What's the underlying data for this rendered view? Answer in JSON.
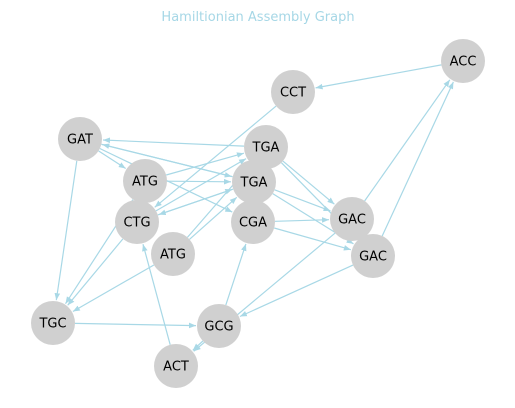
{
  "title": "Hamiltionian Assembly Graph",
  "colors": {
    "node": "#d0d0d0",
    "edge": "#a8d8e6",
    "title": "#a6d7e6",
    "label": "#000000"
  },
  "nodes": [
    {
      "id": "ACC",
      "label": "ACC"
    },
    {
      "id": "CCT",
      "label": "CCT"
    },
    {
      "id": "GAT",
      "label": "GAT"
    },
    {
      "id": "TGA1",
      "label": "TGA"
    },
    {
      "id": "ATG1",
      "label": "ATG"
    },
    {
      "id": "TGA2",
      "label": "TGA"
    },
    {
      "id": "CTG",
      "label": "CTG"
    },
    {
      "id": "CGA",
      "label": "CGA"
    },
    {
      "id": "GAC1",
      "label": "GAC"
    },
    {
      "id": "ATG2",
      "label": "ATG"
    },
    {
      "id": "GAC2",
      "label": "GAC"
    },
    {
      "id": "TGC",
      "label": "TGC"
    },
    {
      "id": "GCG",
      "label": "GCG"
    },
    {
      "id": "ACT",
      "label": "ACT"
    }
  ],
  "edges": [
    [
      "ACC",
      "CCT"
    ],
    [
      "CCT",
      "CTG"
    ],
    [
      "GAT",
      "ATG1"
    ],
    [
      "GAT",
      "TGA2"
    ],
    [
      "GAT",
      "CGA"
    ],
    [
      "GAT",
      "TGC"
    ],
    [
      "TGA1",
      "GAT"
    ],
    [
      "TGA1",
      "GAC1"
    ],
    [
      "TGA1",
      "GAC2"
    ],
    [
      "ATG1",
      "TGA1"
    ],
    [
      "ATG1",
      "TGA2"
    ],
    [
      "ATG1",
      "TGC"
    ],
    [
      "TGA2",
      "GAT"
    ],
    [
      "TGA2",
      "GAC1"
    ],
    [
      "TGA2",
      "GAC2"
    ],
    [
      "TGA2",
      "CTG"
    ],
    [
      "CTG",
      "TGA1"
    ],
    [
      "CTG",
      "TGA2"
    ],
    [
      "CTG",
      "TGC"
    ],
    [
      "CGA",
      "GAC1"
    ],
    [
      "CGA",
      "GAC2"
    ],
    [
      "ATG2",
      "TGA1"
    ],
    [
      "ATG2",
      "TGA2"
    ],
    [
      "GAC1",
      "ACC"
    ],
    [
      "GAC2",
      "ACC"
    ],
    [
      "GAC1",
      "ACT"
    ],
    [
      "GAC2",
      "GCG"
    ],
    [
      "TGC",
      "GCG"
    ],
    [
      "GCG",
      "CGA"
    ],
    [
      "GCG",
      "ACT"
    ],
    [
      "ACT",
      "CTG"
    ],
    [
      "ATG2",
      "TGC"
    ]
  ]
}
